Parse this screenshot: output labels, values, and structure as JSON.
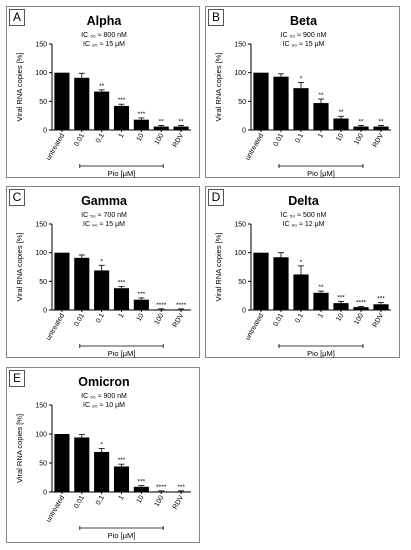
{
  "categories": [
    "untreated",
    "0.01",
    "0.1",
    "1",
    "10",
    "100",
    "RDV"
  ],
  "xlabel": "Pio [μM]",
  "ylabel": "Viral RNA copies [%]",
  "panels": [
    {
      "letter": "A",
      "title": "Alpha",
      "ic50": "IC ₅₀ ≈ 800 nM",
      "ic90": "IC ₉₀ ≈ 15 μM"
    },
    {
      "letter": "B",
      "title": "Beta",
      "ic50": "IC ₅₀ ≈ 900 nM",
      "ic90": "IC ₉₀ ≈ 15 μM"
    },
    {
      "letter": "C",
      "title": "Gamma",
      "ic50": "IC ₅₀ ≈ 700 nM",
      "ic90": "IC ₉₀ ≈ 15 μM"
    },
    {
      "letter": "D",
      "title": "Delta",
      "ic50": "IC ₅₀ ≈ 500 nM",
      "ic90": "IC ₉₀ ≈ 12 μM"
    },
    {
      "letter": "E",
      "title": "Omicron",
      "ic50": "IC ₅₀ ≈ 900 nM",
      "ic90": "IC ₉₀ ≈ 10 μM"
    }
  ],
  "chart_data": [
    {
      "type": "bar",
      "title": "Alpha",
      "categories": [
        "untreated",
        "0.01",
        "0.1",
        "1",
        "10",
        "100",
        "RDV"
      ],
      "values": [
        100,
        91,
        67,
        42,
        18,
        6,
        6
      ],
      "errors": [
        0,
        8,
        3,
        3,
        3,
        2,
        2
      ],
      "significance": [
        "",
        "",
        "**",
        "***",
        "***",
        "**",
        "**"
      ],
      "xlabel": "Pio [μM]",
      "ylabel": "Viral RNA copies [%]",
      "ylim": [
        0,
        150
      ],
      "yticks": [
        0,
        50,
        100,
        150
      ],
      "annotations": [
        "IC ₅₀ ≈ 800 nM",
        "IC ₉₀ ≈ 15 μM"
      ]
    },
    {
      "type": "bar",
      "title": "Beta",
      "categories": [
        "untreated",
        "0.01",
        "0.1",
        "1",
        "10",
        "100",
        "RDV"
      ],
      "values": [
        100,
        93,
        73,
        47,
        20,
        6,
        6
      ],
      "errors": [
        0,
        5,
        10,
        7,
        4,
        2,
        2
      ],
      "significance": [
        "",
        "",
        "*",
        "**",
        "**",
        "**",
        "**"
      ],
      "xlabel": "Pio [μM]",
      "ylabel": "Viral RNA copies [%]",
      "ylim": [
        0,
        150
      ],
      "yticks": [
        0,
        50,
        100,
        150
      ],
      "annotations": [
        "IC ₅₀ ≈ 900 nM",
        "IC ₉₀ ≈ 15 μM"
      ]
    },
    {
      "type": "bar",
      "title": "Gamma",
      "categories": [
        "untreated",
        "0.01",
        "0.1",
        "1",
        "10",
        "100",
        "RDV"
      ],
      "values": [
        100,
        91,
        69,
        38,
        18,
        1,
        1
      ],
      "errors": [
        0,
        5,
        9,
        3,
        3,
        1,
        1
      ],
      "significance": [
        "",
        "",
        "*",
        "***",
        "***",
        "****",
        "****"
      ],
      "xlabel": "Pio [μM]",
      "ylabel": "Viral RNA copies [%]",
      "ylim": [
        0,
        150
      ],
      "yticks": [
        0,
        50,
        100,
        150
      ],
      "annotations": [
        "IC ₅₀ ≈ 700 nM",
        "IC ₉₀ ≈ 15 μM"
      ]
    },
    {
      "type": "bar",
      "title": "Delta",
      "categories": [
        "untreated",
        "0.01",
        "0.1",
        "1",
        "10",
        "100",
        "RDV"
      ],
      "values": [
        100,
        92,
        62,
        30,
        12,
        5,
        10
      ],
      "errors": [
        0,
        8,
        15,
        3,
        3,
        1,
        3
      ],
      "significance": [
        "",
        "",
        "*",
        "**",
        "***",
        "****",
        "***"
      ],
      "xlabel": "Pio [μM]",
      "ylabel": "Viral RNA copies [%]",
      "ylim": [
        0,
        150
      ],
      "yticks": [
        0,
        50,
        100,
        150
      ],
      "annotations": [
        "IC ₅₀ ≈ 500 nM",
        "IC ₉₀ ≈ 12 μM"
      ]
    },
    {
      "type": "bar",
      "title": "Omicron",
      "categories": [
        "untreated",
        "0.01",
        "0.1",
        "1",
        "10",
        "100",
        "RDV"
      ],
      "values": [
        100,
        94,
        69,
        44,
        9,
        1,
        1
      ],
      "errors": [
        0,
        5,
        6,
        4,
        2,
        1,
        1
      ],
      "significance": [
        "",
        "",
        "*",
        "***",
        "***",
        "****",
        "***"
      ],
      "xlabel": "Pio [μM]",
      "ylabel": "Viral RNA copies [%]",
      "ylim": [
        0,
        150
      ],
      "yticks": [
        0,
        50,
        100,
        150
      ],
      "annotations": [
        "IC ₅₀ ≈ 900 nM",
        "IC ₉₀ ≈ 10 μM"
      ]
    }
  ]
}
